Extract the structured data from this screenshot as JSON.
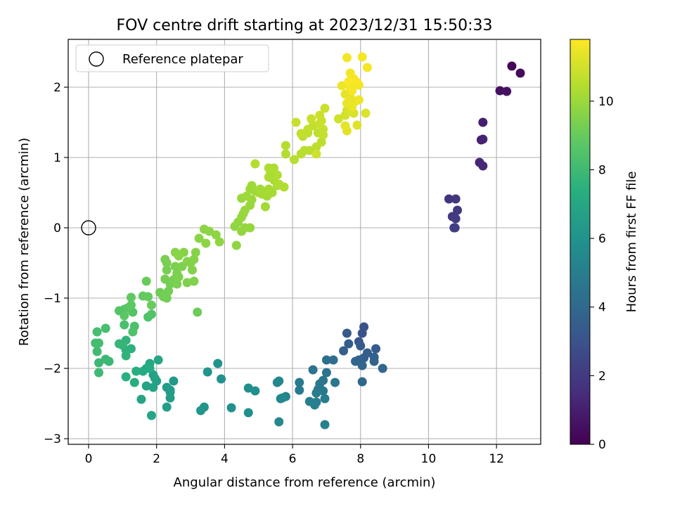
{
  "chart_data": {
    "type": "scatter",
    "title": "FOV centre drift starting at 2023/12/31 15:50:33",
    "xlabel": "Angular distance from reference (arcmin)",
    "ylabel": "Rotation from reference (arcmin)",
    "xlim": [
      -0.6,
      13.3
    ],
    "ylim": [
      -3.08,
      2.68
    ],
    "xticks": [
      0,
      2,
      4,
      6,
      8,
      10,
      12
    ],
    "yticks": [
      -3,
      -2,
      -1,
      0,
      1,
      2
    ],
    "xtick_labels": [
      "0",
      "2",
      "4",
      "6",
      "8",
      "10",
      "12"
    ],
    "ytick_labels": [
      "−3",
      "−2",
      "−1",
      "0",
      "1",
      "2"
    ],
    "grid": true,
    "legend": {
      "placement": "top-left",
      "entries": [
        "Reference platepar"
      ]
    },
    "reference": {
      "x": 0,
      "y": 0
    },
    "colorbar": {
      "label": "Hours from first FF file",
      "colormap": "viridis",
      "range": [
        0,
        11.8
      ],
      "ticks": [
        0,
        2,
        4,
        6,
        8,
        10
      ],
      "tick_labels": [
        "0",
        "2",
        "4",
        "6",
        "8",
        "10"
      ]
    },
    "points": [
      [
        12.45,
        2.3,
        0.2
      ],
      [
        12.7,
        2.2,
        0.3
      ],
      [
        12.1,
        1.95,
        0.5
      ],
      [
        12.3,
        1.94,
        0.6
      ],
      [
        11.6,
        1.5,
        1.0
      ],
      [
        11.55,
        1.25,
        1.1
      ],
      [
        11.6,
        1.26,
        1.15
      ],
      [
        11.5,
        0.93,
        1.3
      ],
      [
        11.6,
        0.88,
        1.35
      ],
      [
        10.6,
        0.41,
        1.8
      ],
      [
        10.8,
        0.41,
        1.9
      ],
      [
        10.85,
        0.25,
        2.0
      ],
      [
        10.7,
        0.16,
        2.05
      ],
      [
        10.8,
        0.13,
        2.1
      ],
      [
        10.75,
        0.0,
        2.15
      ],
      [
        10.78,
        0.0,
        2.2
      ],
      [
        8.1,
        -1.41,
        3.0
      ],
      [
        8.05,
        -1.5,
        3.1
      ],
      [
        7.95,
        -1.62,
        3.2
      ],
      [
        7.6,
        -1.5,
        3.3
      ],
      [
        8.0,
        -1.68,
        3.4
      ],
      [
        8.45,
        -1.72,
        3.45
      ],
      [
        7.65,
        -1.65,
        3.5
      ],
      [
        7.5,
        -1.75,
        3.55
      ],
      [
        8.2,
        -1.78,
        3.6
      ],
      [
        8.1,
        -1.85,
        3.65
      ],
      [
        8.4,
        -1.84,
        3.7
      ],
      [
        7.95,
        -1.88,
        3.75
      ],
      [
        8.4,
        -1.9,
        3.8
      ],
      [
        7.85,
        -1.9,
        3.85
      ],
      [
        8.05,
        -1.96,
        3.9
      ],
      [
        8.65,
        -2.0,
        3.95
      ],
      [
        8.05,
        -2.19,
        4.0
      ],
      [
        7.2,
        -1.88,
        4.3
      ],
      [
        7.0,
        -1.88,
        4.4
      ],
      [
        6.6,
        -2.02,
        4.5
      ],
      [
        7.0,
        -2.06,
        4.55
      ],
      [
        6.9,
        -2.17,
        4.6
      ],
      [
        7.25,
        -2.2,
        4.65
      ],
      [
        6.8,
        -2.22,
        4.7
      ],
      [
        6.75,
        -2.3,
        4.75
      ],
      [
        6.9,
        -2.32,
        4.8
      ],
      [
        6.2,
        -2.2,
        4.85
      ],
      [
        6.2,
        -2.31,
        4.9
      ],
      [
        6.7,
        -2.35,
        4.95
      ],
      [
        6.95,
        -2.43,
        5.0
      ],
      [
        6.7,
        -2.48,
        5.05
      ],
      [
        6.5,
        -2.47,
        5.1
      ],
      [
        6.65,
        -2.52,
        5.15
      ],
      [
        6.95,
        -2.8,
        5.2
      ],
      [
        5.8,
        -2.4,
        5.3
      ],
      [
        5.65,
        -2.43,
        5.35
      ],
      [
        5.6,
        -2.18,
        5.4
      ],
      [
        5.55,
        -2.2,
        5.45
      ],
      [
        5.7,
        -2.42,
        5.5
      ],
      [
        5.6,
        -2.76,
        5.55
      ],
      [
        4.7,
        -2.28,
        5.8
      ],
      [
        4.9,
        -2.32,
        5.85
      ],
      [
        4.7,
        -2.63,
        5.9
      ],
      [
        4.2,
        -2.56,
        5.95
      ],
      [
        3.9,
        -2.15,
        6.0
      ],
      [
        3.8,
        -1.93,
        6.05
      ],
      [
        3.5,
        -2.05,
        6.1
      ],
      [
        3.4,
        -2.55,
        6.15
      ],
      [
        3.3,
        -2.6,
        6.2
      ],
      [
        2.5,
        -2.18,
        6.4
      ],
      [
        2.4,
        -2.31,
        6.45
      ],
      [
        2.3,
        -2.27,
        6.5
      ],
      [
        2.4,
        -2.34,
        6.55
      ],
      [
        2.4,
        -2.42,
        6.6
      ],
      [
        2.3,
        -2.55,
        6.65
      ],
      [
        2.0,
        -2.18,
        6.7
      ],
      [
        1.95,
        -2.14,
        6.75
      ],
      [
        1.9,
        -2.09,
        6.8
      ],
      [
        1.9,
        -2.27,
        6.85
      ],
      [
        1.7,
        -2.25,
        6.9
      ],
      [
        1.55,
        -2.44,
        6.95
      ],
      [
        1.85,
        -2.67,
        7.0
      ],
      [
        2.05,
        -1.88,
        7.05
      ],
      [
        1.8,
        -1.93,
        7.1
      ],
      [
        1.7,
        -2.0,
        7.15
      ],
      [
        1.6,
        -2.04,
        7.2
      ],
      [
        1.8,
        -2.0,
        7.25
      ],
      [
        1.4,
        -2.04,
        7.4
      ],
      [
        1.35,
        -2.2,
        7.45
      ],
      [
        1.1,
        -2.12,
        7.5
      ],
      [
        1.25,
        -1.72,
        7.55
      ],
      [
        1.1,
        -1.74,
        7.6
      ],
      [
        1.1,
        -1.82,
        7.65
      ],
      [
        1.0,
        -1.67,
        7.7
      ],
      [
        1.1,
        -1.6,
        7.75
      ],
      [
        0.9,
        -1.65,
        7.8
      ],
      [
        0.6,
        -1.9,
        7.9
      ],
      [
        0.5,
        -1.87,
        7.95
      ],
      [
        0.3,
        -1.92,
        8.0
      ],
      [
        0.3,
        -2.06,
        8.05
      ],
      [
        0.25,
        -1.76,
        8.1
      ],
      [
        0.2,
        -1.64,
        8.15
      ],
      [
        0.3,
        -1.64,
        8.2
      ],
      [
        0.25,
        -1.48,
        8.25
      ],
      [
        0.5,
        -1.43,
        8.3
      ],
      [
        1.05,
        -1.38,
        8.35
      ],
      [
        1.35,
        -1.4,
        8.4
      ],
      [
        1.3,
        -1.48,
        8.45
      ],
      [
        1.75,
        -1.27,
        8.5
      ],
      [
        1.85,
        -1.23,
        8.55
      ],
      [
        0.9,
        -1.18,
        8.6
      ],
      [
        1.3,
        -1.2,
        8.65
      ],
      [
        1.05,
        -1.16,
        8.7
      ],
      [
        1.15,
        -1.14,
        8.75
      ],
      [
        1.05,
        -1.25,
        8.8
      ],
      [
        1.25,
        -1.1,
        8.85
      ],
      [
        1.25,
        -0.99,
        8.9
      ],
      [
        1.6,
        -0.97,
        8.95
      ],
      [
        1.75,
        -0.98,
        9.0
      ],
      [
        1.7,
        -0.76,
        9.05
      ],
      [
        1.85,
        -1.1,
        9.1
      ],
      [
        3.2,
        -1.2,
        9.15
      ],
      [
        2.1,
        -0.92,
        9.2
      ],
      [
        2.25,
        -0.95,
        9.22
      ],
      [
        2.3,
        -1.0,
        9.24
      ],
      [
        2.2,
        -0.98,
        9.26
      ],
      [
        2.35,
        -0.9,
        9.28
      ],
      [
        2.4,
        -0.8,
        9.3
      ],
      [
        2.25,
        -0.73,
        9.32
      ],
      [
        2.5,
        -0.74,
        9.34
      ],
      [
        2.3,
        -0.6,
        9.36
      ],
      [
        2.25,
        -0.45,
        9.38
      ],
      [
        2.3,
        -0.5,
        9.4
      ],
      [
        2.6,
        -0.8,
        9.42
      ],
      [
        2.6,
        -0.65,
        9.44
      ],
      [
        2.55,
        -0.55,
        9.46
      ],
      [
        2.75,
        -0.55,
        9.48
      ],
      [
        2.65,
        -0.7,
        9.5
      ],
      [
        2.9,
        -0.78,
        9.52
      ],
      [
        3.1,
        -0.76,
        9.54
      ],
      [
        3.05,
        -0.6,
        9.56
      ],
      [
        2.9,
        -0.48,
        9.58
      ],
      [
        3.1,
        -0.45,
        9.6
      ],
      [
        3.0,
        -0.5,
        9.62
      ],
      [
        3.15,
        -0.35,
        9.64
      ],
      [
        2.8,
        -0.35,
        9.66
      ],
      [
        2.55,
        -0.35,
        9.68
      ],
      [
        2.65,
        -0.4,
        9.7
      ],
      [
        3.25,
        -0.15,
        9.72
      ],
      [
        3.4,
        -0.02,
        9.74
      ],
      [
        3.45,
        -0.22,
        9.76
      ],
      [
        3.55,
        -0.05,
        9.78
      ],
      [
        3.75,
        -0.1,
        9.8
      ],
      [
        3.85,
        -0.2,
        9.82
      ],
      [
        4.35,
        -0.25,
        9.84
      ],
      [
        4.3,
        0.02,
        9.85
      ],
      [
        4.4,
        0.08,
        9.87
      ],
      [
        4.5,
        -0.05,
        9.89
      ],
      [
        4.6,
        0.0,
        9.91
      ],
      [
        4.75,
        0.0,
        9.93
      ],
      [
        4.5,
        0.15,
        9.95
      ],
      [
        4.55,
        0.2,
        9.97
      ],
      [
        4.6,
        0.25,
        9.99
      ],
      [
        4.75,
        0.32,
        10.01
      ],
      [
        4.5,
        0.42,
        10.03
      ],
      [
        4.8,
        0.4,
        10.05
      ],
      [
        4.65,
        0.45,
        10.07
      ],
      [
        4.75,
        0.55,
        10.09
      ],
      [
        4.8,
        0.6,
        10.11
      ],
      [
        4.9,
        0.52,
        10.13
      ],
      [
        5.0,
        0.5,
        10.15
      ],
      [
        5.05,
        0.55,
        10.17
      ],
      [
        5.25,
        0.45,
        10.19
      ],
      [
        5.2,
        0.3,
        10.21
      ],
      [
        5.1,
        0.48,
        10.23
      ],
      [
        5.3,
        0.55,
        10.25
      ],
      [
        5.4,
        0.5,
        10.27
      ],
      [
        5.55,
        0.6,
        10.29
      ],
      [
        5.45,
        0.68,
        10.31
      ],
      [
        5.3,
        0.72,
        10.33
      ],
      [
        5.35,
        0.8,
        10.35
      ],
      [
        5.45,
        0.85,
        10.37
      ],
      [
        5.3,
        0.85,
        10.39
      ],
      [
        5.55,
        0.75,
        10.41
      ],
      [
        5.6,
        0.62,
        10.43
      ],
      [
        5.75,
        0.58,
        10.45
      ],
      [
        4.9,
        0.91,
        10.47
      ],
      [
        5.8,
        1.05,
        10.5
      ],
      [
        5.8,
        1.17,
        10.52
      ],
      [
        6.05,
        0.97,
        10.54
      ],
      [
        6.25,
        1.05,
        10.56
      ],
      [
        6.35,
        1.1,
        10.58
      ],
      [
        6.5,
        1.1,
        10.6
      ],
      [
        6.7,
        1.15,
        10.62
      ],
      [
        6.85,
        1.22,
        10.64
      ],
      [
        6.75,
        1.35,
        10.66
      ],
      [
        6.45,
        1.35,
        10.68
      ],
      [
        6.3,
        1.3,
        10.7
      ],
      [
        6.25,
        1.34,
        10.72
      ],
      [
        6.45,
        1.4,
        10.74
      ],
      [
        6.6,
        1.45,
        10.76
      ],
      [
        6.9,
        1.32,
        10.78
      ],
      [
        6.9,
        1.4,
        10.8
      ],
      [
        6.8,
        1.48,
        10.82
      ],
      [
        6.1,
        1.5,
        10.84
      ],
      [
        6.55,
        1.55,
        10.86
      ],
      [
        6.85,
        1.52,
        10.88
      ],
      [
        6.8,
        1.6,
        10.9
      ],
      [
        6.95,
        1.7,
        10.92
      ],
      [
        6.7,
        1.05,
        10.94
      ],
      [
        7.35,
        1.55,
        11.0
      ],
      [
        7.55,
        1.6,
        11.05
      ],
      [
        7.6,
        1.67,
        11.1
      ],
      [
        7.8,
        1.63,
        11.15
      ],
      [
        8.15,
        1.63,
        11.2
      ],
      [
        7.9,
        1.46,
        11.25
      ],
      [
        7.6,
        1.38,
        11.3
      ],
      [
        7.55,
        1.45,
        11.35
      ],
      [
        7.55,
        1.9,
        11.4
      ],
      [
        7.7,
        1.85,
        11.42
      ],
      [
        7.85,
        1.8,
        11.44
      ],
      [
        7.6,
        1.77,
        11.46
      ],
      [
        7.75,
        1.72,
        11.48
      ],
      [
        7.95,
        1.82,
        11.5
      ],
      [
        7.45,
        2.02,
        11.52
      ],
      [
        7.7,
        2.0,
        11.54
      ],
      [
        7.85,
        2.05,
        11.56
      ],
      [
        7.95,
        2.03,
        11.58
      ],
      [
        7.7,
        2.2,
        11.6
      ],
      [
        7.8,
        2.12,
        11.62
      ],
      [
        7.6,
        2.42,
        11.64
      ],
      [
        8.05,
        2.43,
        11.66
      ],
      [
        8.2,
        2.28,
        11.68
      ],
      [
        7.75,
        1.95,
        11.7
      ],
      [
        7.9,
        2.07,
        11.72
      ],
      [
        7.65,
        2.08,
        11.74
      ]
    ]
  }
}
